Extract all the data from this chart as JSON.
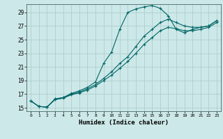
{
  "xlabel": "Humidex (Indice chaleur)",
  "background_color": "#cde8e8",
  "grid_color": "#aecece",
  "line_color": "#006666",
  "xlim": [
    -0.5,
    23.5
  ],
  "ylim": [
    14.5,
    30.2
  ],
  "xticks": [
    0,
    1,
    2,
    3,
    4,
    5,
    6,
    7,
    8,
    9,
    10,
    11,
    12,
    13,
    14,
    15,
    16,
    17,
    18,
    19,
    20,
    21,
    22,
    23
  ],
  "yticks": [
    15,
    17,
    19,
    21,
    23,
    25,
    27,
    29
  ],
  "series1_x": [
    0,
    1,
    2,
    3,
    4,
    5,
    6,
    7,
    8,
    9,
    10,
    11,
    12,
    13,
    14,
    15,
    16,
    17,
    18,
    19,
    20,
    21,
    22,
    23
  ],
  "series1_y": [
    16.0,
    15.2,
    15.1,
    16.3,
    16.5,
    17.1,
    17.5,
    18.0,
    18.8,
    21.5,
    23.2,
    26.5,
    29.0,
    29.5,
    29.8,
    30.0,
    29.6,
    28.5,
    26.5,
    26.0,
    26.5,
    26.8,
    27.0,
    27.8
  ],
  "series2_x": [
    0,
    1,
    2,
    3,
    4,
    5,
    6,
    7,
    8,
    9,
    10,
    11,
    12,
    13,
    14,
    15,
    16,
    17,
    18,
    19,
    20,
    21,
    22,
    23
  ],
  "series2_y": [
    16.0,
    15.2,
    15.1,
    16.3,
    16.5,
    17.0,
    17.3,
    17.8,
    18.4,
    19.3,
    20.3,
    21.5,
    22.5,
    24.0,
    25.5,
    26.5,
    27.5,
    28.0,
    27.5,
    27.0,
    26.8,
    26.8,
    27.0,
    27.8
  ],
  "series3_x": [
    0,
    1,
    2,
    3,
    4,
    5,
    6,
    7,
    8,
    9,
    10,
    11,
    12,
    13,
    14,
    15,
    16,
    17,
    18,
    19,
    20,
    21,
    22,
    23
  ],
  "series3_y": [
    16.0,
    15.2,
    15.1,
    16.2,
    16.4,
    16.9,
    17.2,
    17.6,
    18.2,
    19.0,
    19.8,
    20.8,
    21.8,
    23.0,
    24.3,
    25.3,
    26.3,
    26.8,
    26.6,
    26.3,
    26.3,
    26.5,
    26.8,
    27.5
  ]
}
